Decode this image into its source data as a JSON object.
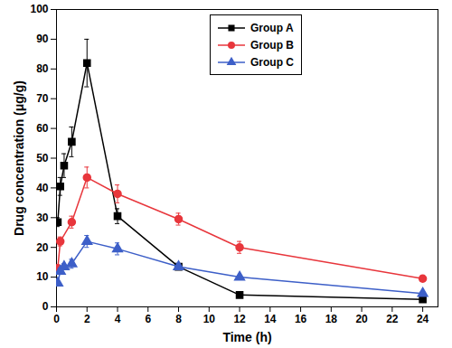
{
  "chart_data": {
    "type": "line",
    "x_label": "Time (h)",
    "y_label": "Drug concentration (μg/g)",
    "xlim": [
      0,
      25
    ],
    "xticks": [
      0,
      2,
      4,
      6,
      8,
      10,
      12,
      14,
      16,
      18,
      20,
      22,
      24
    ],
    "ylim": [
      0,
      100
    ],
    "yticks": [
      0,
      10,
      20,
      30,
      40,
      50,
      60,
      70,
      80,
      90,
      100
    ],
    "grid": false,
    "legend": "top",
    "series": [
      {
        "name": "Group A",
        "color": "#000000",
        "marker": "square",
        "line_style": "solid",
        "x": [
          0.083,
          0.25,
          0.5,
          1,
          2,
          4,
          8,
          12,
          24
        ],
        "values": [
          28.5,
          40.5,
          47.5,
          55.5,
          82,
          30.5,
          13.5,
          4,
          2.5
        ],
        "errors": [
          1.5,
          3,
          4,
          5,
          8,
          2.5,
          1,
          0.5,
          0.5
        ]
      },
      {
        "name": "Group B",
        "color": "#e8363c",
        "marker": "circle",
        "line_style": "solid",
        "x": [
          0.083,
          0.25,
          1,
          2,
          4,
          8,
          12,
          24
        ],
        "values": [
          13,
          22,
          28.5,
          43.5,
          38,
          29.5,
          20,
          9.5
        ],
        "errors": [
          1,
          1.5,
          2,
          3.5,
          3,
          2,
          2,
          1
        ]
      },
      {
        "name": "Group C",
        "color": "#3d5fc8",
        "marker": "triangle",
        "line_style": "solid",
        "x": [
          0.083,
          0.25,
          0.5,
          1,
          2,
          4,
          8,
          12,
          24
        ],
        "values": [
          8,
          12,
          13.5,
          14.5,
          22,
          19.5,
          13.5,
          10,
          4.5
        ],
        "errors": [
          1,
          1,
          1,
          1.5,
          2,
          2,
          1,
          0.5,
          0.5
        ]
      }
    ]
  }
}
